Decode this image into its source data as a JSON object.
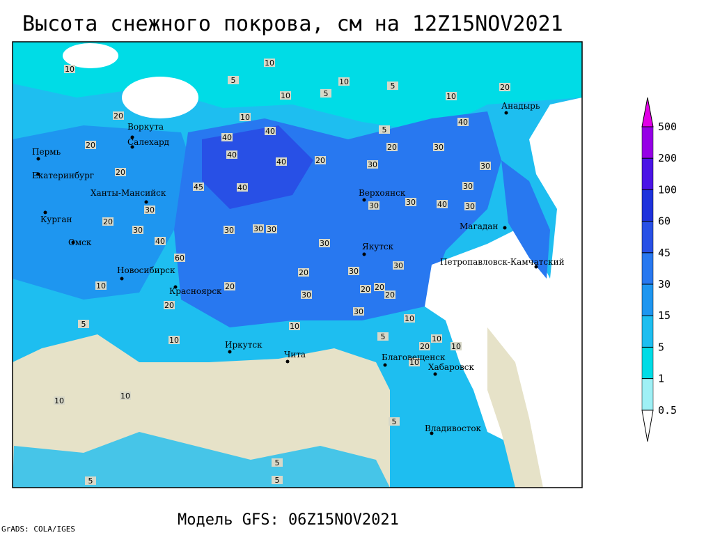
{
  "header": {
    "title": "Высота снежного покрова, см на 12Z15NOV2021"
  },
  "footer": {
    "model": "Модель GFS: 06Z15NOV2021",
    "credit": "GrADS: COLA/IGES"
  },
  "legend": {
    "levels": [
      0.5,
      1,
      5,
      15,
      30,
      45,
      60,
      100,
      200,
      500
    ],
    "colors": [
      "#ffffff",
      "#9ff0f5",
      "#00dce6",
      "#1ebef0",
      "#1e96f0",
      "#2878f0",
      "#2850e6",
      "#1e32dc",
      "#4b14e6",
      "#9600e6",
      "#e100e6"
    ]
  },
  "cities": [
    "Воркута",
    "Салехард",
    "Пермь",
    "Екатеринбург",
    "Ханты-Мансийск",
    "Курган",
    "Омск",
    "Новосибирск",
    "Красноярск",
    "Иркутск",
    "Чита",
    "Верхоянск",
    "Якутск",
    "Магадан",
    "Анадырь",
    "Петропавловск-Камчатский",
    "Благовещенск",
    "Хабаровск",
    "Владивосток"
  ],
  "contour_labels": [
    10,
    10,
    5,
    10,
    5,
    5,
    10,
    10,
    20,
    10,
    20,
    40,
    5,
    40,
    20,
    40,
    20,
    30,
    40,
    40,
    20,
    30,
    30,
    20,
    45,
    40,
    30,
    30,
    30,
    40,
    30,
    30,
    20,
    30,
    30,
    30,
    30,
    40,
    30,
    60,
    30,
    30,
    20,
    20,
    20,
    20,
    30,
    30,
    20,
    20,
    10,
    10,
    10,
    5,
    20,
    10,
    10,
    5,
    10,
    10,
    10,
    10,
    5,
    5,
    5,
    5
  ]
}
